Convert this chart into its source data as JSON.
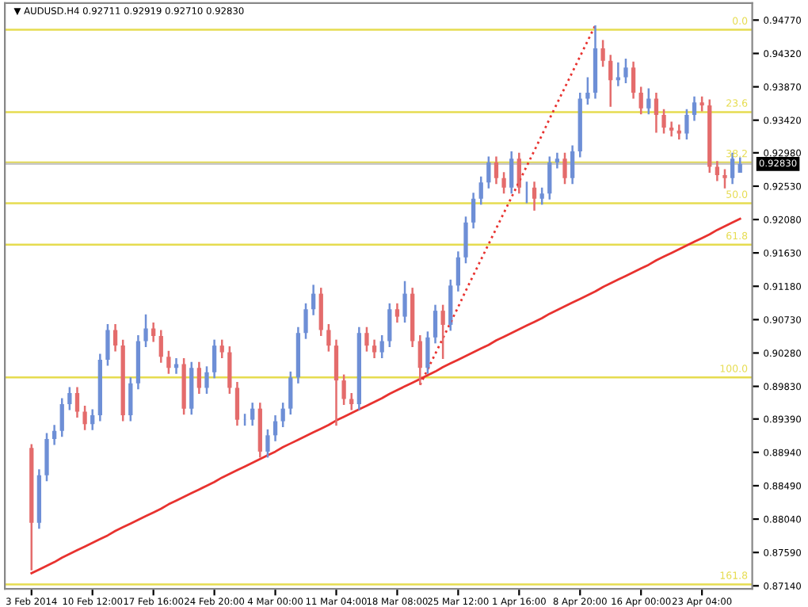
{
  "chart_data": {
    "type": "candlestick",
    "title": "▼ AUDUSD.H4 0.92711 0.92919 0.92710 0.92830",
    "categories": [
      "3 Feb 2014",
      null,
      null,
      null,
      null,
      null,
      null,
      null,
      "10 Feb 12:00",
      null,
      null,
      null,
      null,
      null,
      null,
      null,
      "17 Feb 16:00",
      null,
      null,
      null,
      null,
      null,
      null,
      null,
      "24 Feb 20:00",
      null,
      null,
      null,
      null,
      null,
      null,
      null,
      "4 Mar 00:00",
      null,
      null,
      null,
      null,
      null,
      null,
      null,
      "11 Mar 04:00",
      null,
      null,
      null,
      null,
      null,
      null,
      null,
      "18 Mar 08:00",
      null,
      null,
      null,
      null,
      null,
      null,
      null,
      "25 Mar 12:00",
      null,
      null,
      null,
      null,
      null,
      null,
      null,
      "1 Apr 16:00",
      null,
      null,
      null,
      null,
      null,
      null,
      null,
      "8 Apr 20:00",
      null,
      null,
      null,
      null,
      null,
      null,
      null,
      "16 Apr 00:00",
      null,
      null,
      null,
      null,
      null,
      null,
      null,
      "23 Apr 04:00",
      null,
      null,
      null,
      null,
      null
    ],
    "ohlc": [
      [
        0.89,
        0.8905,
        0.8735,
        0.8799
      ],
      [
        0.8799,
        0.8871,
        0.8791,
        0.8863
      ],
      [
        0.8863,
        0.892,
        0.8855,
        0.8912
      ],
      [
        0.8912,
        0.8931,
        0.8904,
        0.8923
      ],
      [
        0.8923,
        0.8967,
        0.8915,
        0.8959
      ],
      [
        0.8959,
        0.8982,
        0.8951,
        0.8974
      ],
      [
        0.8974,
        0.8982,
        0.8941,
        0.8949
      ],
      [
        0.8949,
        0.8957,
        0.8924,
        0.8932
      ],
      [
        0.8932,
        0.8952,
        0.8924,
        0.8944
      ],
      [
        0.8944,
        0.9027,
        0.8936,
        0.9019
      ],
      [
        0.9019,
        0.9067,
        0.9011,
        0.9059
      ],
      [
        0.9059,
        0.9067,
        0.903,
        0.9038
      ],
      [
        0.9038,
        0.9046,
        0.8936,
        0.8944
      ],
      [
        0.8944,
        0.8995,
        0.8936,
        0.8987
      ],
      [
        0.8987,
        0.9052,
        0.8979,
        0.9044
      ],
      [
        0.9044,
        0.908,
        0.9036,
        0.9061
      ],
      [
        0.9061,
        0.9069,
        0.9043,
        0.9051
      ],
      [
        0.9051,
        0.9059,
        0.9015,
        0.9023
      ],
      [
        0.9023,
        0.9031,
        0.9,
        0.9008
      ],
      [
        0.9008,
        0.9021,
        0.9,
        0.9013
      ],
      [
        0.9013,
        0.9021,
        0.8945,
        0.8953
      ],
      [
        0.8953,
        0.9016,
        0.8945,
        0.9008
      ],
      [
        0.9008,
        0.9016,
        0.8973,
        0.8981
      ],
      [
        0.8981,
        0.901,
        0.8973,
        0.9002
      ],
      [
        0.9002,
        0.9046,
        0.8994,
        0.9038
      ],
      [
        0.9038,
        0.9046,
        0.9021,
        0.9029
      ],
      [
        0.9029,
        0.9037,
        0.8973,
        0.8981
      ],
      [
        0.8981,
        0.8989,
        0.893,
        0.8938
      ],
      [
        0.8938,
        0.8946,
        0.893,
        0.8938
      ],
      [
        0.8938,
        0.8961,
        0.893,
        0.8953
      ],
      [
        0.8953,
        0.8961,
        0.8887,
        0.8895
      ],
      [
        0.8895,
        0.8925,
        0.8887,
        0.8917
      ],
      [
        0.8917,
        0.8944,
        0.8909,
        0.8936
      ],
      [
        0.8936,
        0.8961,
        0.8928,
        0.8953
      ],
      [
        0.8953,
        0.9003,
        0.8945,
        0.8995
      ],
      [
        0.8995,
        0.9063,
        0.8987,
        0.9055
      ],
      [
        0.9055,
        0.9095,
        0.9047,
        0.9087
      ],
      [
        0.9087,
        0.912,
        0.9079,
        0.9108
      ],
      [
        0.9108,
        0.9116,
        0.9051,
        0.9059
      ],
      [
        0.9059,
        0.9067,
        0.903,
        0.9038
      ],
      [
        0.9038,
        0.9046,
        0.893,
        0.8991
      ],
      [
        0.8991,
        0.8999,
        0.8958,
        0.8966
      ],
      [
        0.8966,
        0.8974,
        0.8951,
        0.8959
      ],
      [
        0.8959,
        0.9063,
        0.8951,
        0.9055
      ],
      [
        0.9055,
        0.9063,
        0.903,
        0.9038
      ],
      [
        0.9038,
        0.9046,
        0.9021,
        0.9029
      ],
      [
        0.9029,
        0.9052,
        0.9021,
        0.9044
      ],
      [
        0.9044,
        0.9095,
        0.9036,
        0.9087
      ],
      [
        0.9087,
        0.9095,
        0.9069,
        0.9077
      ],
      [
        0.9077,
        0.9125,
        0.9069,
        0.9108
      ],
      [
        0.9108,
        0.9116,
        0.9036,
        0.9044
      ],
      [
        0.9044,
        0.9052,
        0.8985,
        0.9008
      ],
      [
        0.9008,
        0.9057,
        0.9,
        0.9049
      ],
      [
        0.9049,
        0.9093,
        0.9041,
        0.9085
      ],
      [
        0.9085,
        0.9093,
        0.902,
        0.9066
      ],
      [
        0.9066,
        0.9127,
        0.9058,
        0.9119
      ],
      [
        0.9119,
        0.9165,
        0.9111,
        0.9157
      ],
      [
        0.9157,
        0.9212,
        0.9149,
        0.9204
      ],
      [
        0.9204,
        0.9244,
        0.9196,
        0.9236
      ],
      [
        0.9236,
        0.9266,
        0.9228,
        0.9258
      ],
      [
        0.9258,
        0.9293,
        0.925,
        0.9285
      ],
      [
        0.9285,
        0.9293,
        0.9256,
        0.9264
      ],
      [
        0.9264,
        0.9272,
        0.9243,
        0.9251
      ],
      [
        0.9251,
        0.93,
        0.9243,
        0.929
      ],
      [
        0.929,
        0.9298,
        0.9243,
        0.9251
      ],
      [
        0.9251,
        0.9259,
        0.923,
        0.9251
      ],
      [
        0.9251,
        0.9259,
        0.922,
        0.9236
      ],
      [
        0.9236,
        0.9251,
        0.9228,
        0.9243
      ],
      [
        0.9243,
        0.9293,
        0.9235,
        0.9285
      ],
      [
        0.9285,
        0.9298,
        0.9277,
        0.929
      ],
      [
        0.929,
        0.9298,
        0.9256,
        0.9264
      ],
      [
        0.9264,
        0.9308,
        0.9256,
        0.93
      ],
      [
        0.93,
        0.9379,
        0.9292,
        0.9371
      ],
      [
        0.9371,
        0.94,
        0.9363,
        0.9379
      ],
      [
        0.9379,
        0.947,
        0.9371,
        0.9439
      ],
      [
        0.9439,
        0.945,
        0.9414,
        0.9422
      ],
      [
        0.9422,
        0.943,
        0.936,
        0.9396
      ],
      [
        0.9396,
        0.942,
        0.9388,
        0.94
      ],
      [
        0.94,
        0.9425,
        0.9392,
        0.9413
      ],
      [
        0.9413,
        0.9421,
        0.9371,
        0.9379
      ],
      [
        0.9379,
        0.9387,
        0.935,
        0.9358
      ],
      [
        0.9358,
        0.9385,
        0.935,
        0.9371
      ],
      [
        0.9371,
        0.9379,
        0.9325,
        0.9349
      ],
      [
        0.9349,
        0.9357,
        0.9324,
        0.9332
      ],
      [
        0.9332,
        0.934,
        0.932,
        0.9328
      ],
      [
        0.9328,
        0.9336,
        0.9316,
        0.9324
      ],
      [
        0.9324,
        0.9357,
        0.9316,
        0.9349
      ],
      [
        0.9349,
        0.9374,
        0.9341,
        0.9366
      ],
      [
        0.9366,
        0.9374,
        0.9354,
        0.9362
      ],
      [
        0.9362,
        0.937,
        0.9271,
        0.9279
      ],
      [
        0.9279,
        0.9287,
        0.926,
        0.9268
      ],
      [
        0.9268,
        0.9276,
        0.925,
        0.9264
      ],
      [
        0.9264,
        0.9298,
        0.9256,
        0.929
      ],
      [
        0.92711,
        0.92919,
        0.9271,
        0.9283
      ]
    ],
    "colors": [
      "#e46c6c",
      "#6e8fd6",
      "#6e8fd6",
      "#6e8fd6",
      "#6e8fd6",
      "#6e8fd6",
      "#e46c6c",
      "#e46c6c",
      "#6e8fd6",
      "#6e8fd6",
      "#6e8fd6",
      "#e46c6c",
      "#e46c6c",
      "#6e8fd6",
      "#6e8fd6",
      "#6e8fd6",
      "#e46c6c",
      "#e46c6c",
      "#e46c6c",
      "#6e8fd6",
      "#e46c6c",
      "#6e8fd6",
      "#e46c6c",
      "#6e8fd6",
      "#6e8fd6",
      "#e46c6c",
      "#e46c6c",
      "#e46c6c",
      "#6e8fd6",
      "#6e8fd6",
      "#e46c6c",
      "#6e8fd6",
      "#6e8fd6",
      "#6e8fd6",
      "#6e8fd6",
      "#6e8fd6",
      "#6e8fd6",
      "#6e8fd6",
      "#e46c6c",
      "#e46c6c",
      "#e46c6c",
      "#e46c6c",
      "#e46c6c",
      "#6e8fd6",
      "#e46c6c",
      "#e46c6c",
      "#6e8fd6",
      "#6e8fd6",
      "#e46c6c",
      "#6e8fd6",
      "#e46c6c",
      "#e46c6c",
      "#6e8fd6",
      "#6e8fd6",
      "#e46c6c",
      "#6e8fd6",
      "#6e8fd6",
      "#6e8fd6",
      "#6e8fd6",
      "#6e8fd6",
      "#6e8fd6",
      "#e46c6c",
      "#e46c6c",
      "#6e8fd6",
      "#e46c6c",
      "#6e8fd6",
      "#e46c6c",
      "#6e8fd6",
      "#6e8fd6",
      "#6e8fd6",
      "#e46c6c",
      "#6e8fd6",
      "#6e8fd6",
      "#6e8fd6",
      "#6e8fd6",
      "#e46c6c",
      "#e46c6c",
      "#6e8fd6",
      "#6e8fd6",
      "#e46c6c",
      "#e46c6c",
      "#6e8fd6",
      "#e46c6c",
      "#e46c6c",
      "#e46c6c",
      "#e46c6c",
      "#6e8fd6",
      "#6e8fd6",
      "#e46c6c",
      "#e46c6c",
      "#e46c6c",
      "#e46c6c",
      "#6e8fd6",
      "#6e8fd6"
    ],
    "series": [
      {
        "type": "line",
        "color": "#e8322f",
        "line_style": "solid",
        "values": [
          0.8731,
          0.8736,
          0.8741,
          0.8746,
          0.8752,
          0.8757,
          0.8762,
          0.8767,
          0.8772,
          0.8777,
          0.8782,
          0.8788,
          0.8793,
          0.8798,
          0.8803,
          0.8808,
          0.8813,
          0.8818,
          0.8824,
          0.8829,
          0.8834,
          0.8839,
          0.8844,
          0.8849,
          0.8854,
          0.886,
          0.8865,
          0.887,
          0.8875,
          0.888,
          0.8885,
          0.889,
          0.8895,
          0.8901,
          0.8906,
          0.8911,
          0.8916,
          0.8921,
          0.8926,
          0.8931,
          0.8937,
          0.8942,
          0.8947,
          0.8952,
          0.8957,
          0.8962,
          0.8967,
          0.8973,
          0.8978,
          0.8983,
          0.8988,
          0.8993,
          0.8998,
          0.9003,
          0.9009,
          0.9014,
          0.9019,
          0.9024,
          0.9029,
          0.9034,
          0.9039,
          0.9045,
          0.905,
          0.9055,
          0.906,
          0.9065,
          0.907,
          0.9075,
          0.9081,
          0.9086,
          0.9091,
          0.9096,
          0.9101,
          0.9106,
          0.9111,
          0.9117,
          0.9122,
          0.9127,
          0.9132,
          0.9137,
          0.9142,
          0.9147,
          0.9153,
          0.9158,
          0.9163,
          0.9168,
          0.9173,
          0.9178,
          0.9183,
          0.9188,
          0.9194,
          0.9199,
          0.9204,
          0.9209
        ]
      },
      {
        "type": "line",
        "color": "#e8322f",
        "line_style": "dotted",
        "values": [
          null,
          null,
          null,
          null,
          null,
          null,
          null,
          null,
          null,
          null,
          null,
          null,
          null,
          null,
          null,
          null,
          null,
          null,
          null,
          null,
          null,
          null,
          null,
          null,
          null,
          null,
          null,
          null,
          null,
          null,
          null,
          null,
          null,
          null,
          null,
          null,
          null,
          null,
          null,
          null,
          null,
          null,
          null,
          null,
          null,
          null,
          null,
          null,
          null,
          null,
          null,
          0.8985,
          0.9006,
          0.9027,
          0.9048,
          0.9069,
          0.909,
          0.9112,
          0.9133,
          0.9154,
          0.9175,
          0.9196,
          0.9217,
          0.9238,
          0.9259,
          0.928,
          0.9301,
          0.9322,
          0.9344,
          0.9365,
          0.9386,
          0.9407,
          0.9428,
          0.9449,
          0.947,
          null,
          null,
          null,
          null,
          null,
          null,
          null,
          null,
          null,
          null,
          null,
          null,
          null,
          null,
          null,
          null,
          null,
          null,
          null
        ]
      }
    ],
    "ylim": [
      0.871,
      0.95
    ],
    "yticks": [
      {
        "value": 0.8714,
        "label": "0.87140"
      },
      {
        "value": 0.8759,
        "label": "0.87590"
      },
      {
        "value": 0.8804,
        "label": "0.88040"
      },
      {
        "value": 0.8849,
        "label": "0.88490"
      },
      {
        "value": 0.8894,
        "label": "0.88940"
      },
      {
        "value": 0.8939,
        "label": "0.89390"
      },
      {
        "value": 0.8983,
        "label": "0.89830"
      },
      {
        "value": 0.9028,
        "label": "0.90280"
      },
      {
        "value": 0.9073,
        "label": "0.90730"
      },
      {
        "value": 0.9118,
        "label": "0.91180"
      },
      {
        "value": 0.9163,
        "label": "0.91630"
      },
      {
        "value": 0.9208,
        "label": "0.92080"
      },
      {
        "value": 0.9253,
        "label": "0.92530"
      },
      {
        "value": 0.9298,
        "label": "0.92980"
      },
      {
        "value": 0.9342,
        "label": "0.93420"
      },
      {
        "value": 0.9387,
        "label": "0.93870"
      },
      {
        "value": 0.9432,
        "label": "0.94320"
      },
      {
        "value": 0.9477,
        "label": "0.94770"
      }
    ],
    "ref_lines": [
      {
        "axis": "y",
        "value": 0.9464,
        "color": "#e6dc50"
      },
      {
        "axis": "y",
        "value": 0.9353,
        "color": "#e6dc50"
      },
      {
        "axis": "y",
        "value": 0.9285,
        "color": "#e6dc50"
      },
      {
        "axis": "y",
        "value": 0.923,
        "color": "#e6dc50"
      },
      {
        "axis": "y",
        "value": 0.9174,
        "color": "#e6dc50"
      },
      {
        "axis": "y",
        "value": 0.8995,
        "color": "#e6dc50"
      },
      {
        "axis": "y",
        "value": 0.8716,
        "color": "#e6dc50"
      },
      {
        "axis": "y",
        "value": 0.9283,
        "label": "0.92830",
        "color": "#c8c8c8"
      }
    ],
    "annotations": [
      {
        "text": "0.0",
        "y": 0.9464
      },
      {
        "text": "23.6",
        "y": 0.9353
      },
      {
        "text": "38.2",
        "y": 0.9285
      },
      {
        "text": "50.0",
        "y": 0.923
      },
      {
        "text": "61.8",
        "y": 0.9174
      },
      {
        "text": "100.0",
        "y": 0.8995
      },
      {
        "text": "161.8",
        "y": 0.8716
      }
    ],
    "grid": false,
    "legend": false
  }
}
